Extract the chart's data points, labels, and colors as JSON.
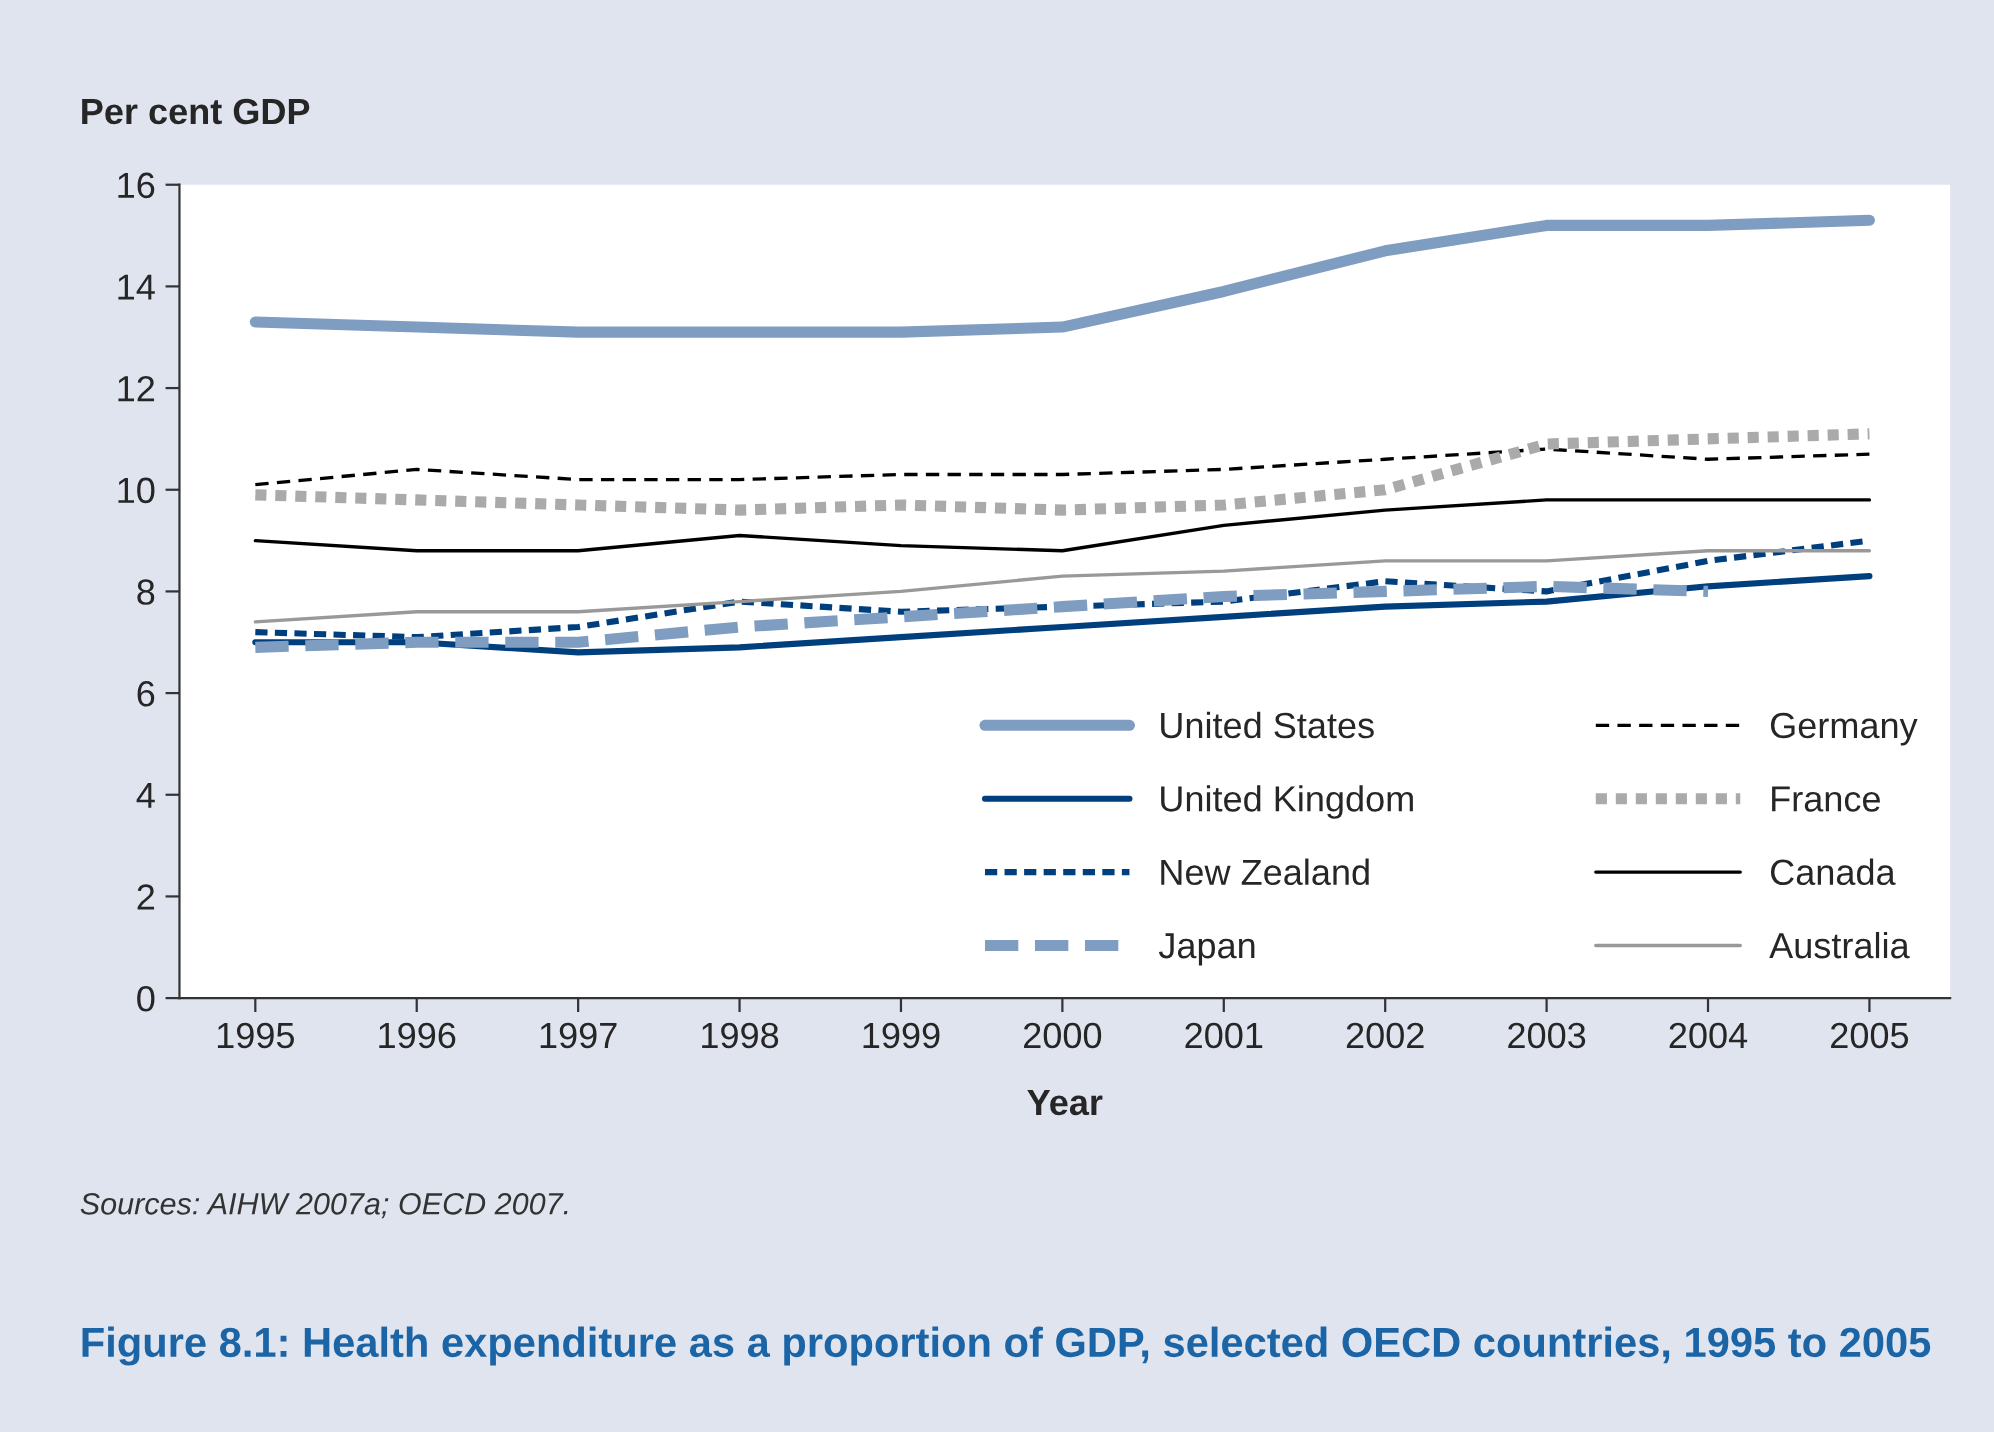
{
  "chart_data": {
    "type": "line",
    "title": "Figure 8.1: Health expenditure as a proportion of GDP, selected OECD countries, 1995 to 2005",
    "xlabel": "Year",
    "ylabel": "Per cent GDP",
    "annotations": [
      "Sources: AIHW 2007a; OECD 2007."
    ],
    "categories": [
      "1995",
      "1996",
      "1997",
      "1998",
      "1999",
      "2000",
      "2001",
      "2002",
      "2003",
      "2004",
      "2005"
    ],
    "ylim": [
      0,
      16
    ],
    "yticks": [
      0,
      2,
      4,
      6,
      8,
      10,
      12,
      14,
      16
    ],
    "grid": false,
    "legend": "bottom right",
    "series": [
      {
        "name": "United States",
        "color": "#7f9cc1",
        "line_style": "solid",
        "values": [
          13.3,
          13.2,
          13.1,
          13.1,
          13.1,
          13.2,
          13.9,
          14.7,
          15.2,
          15.2,
          15.3
        ]
      },
      {
        "name": "United Kingdom",
        "color": "#003f7d",
        "line_style": "solid",
        "values": [
          7.0,
          7.0,
          6.8,
          6.9,
          7.1,
          7.3,
          7.5,
          7.7,
          7.8,
          8.1,
          8.3
        ]
      },
      {
        "name": "New Zealand",
        "color": "#003f7d",
        "line_style": "dashed",
        "values": [
          7.2,
          7.1,
          7.3,
          7.8,
          7.6,
          7.7,
          7.8,
          8.2,
          8.0,
          8.6,
          9.0
        ]
      },
      {
        "name": "Japan",
        "color": "#7f9cc1",
        "line_style": "dashed",
        "values": [
          6.9,
          7.0,
          7.0,
          7.3,
          7.5,
          7.7,
          7.9,
          8.0,
          8.1,
          8.0,
          null
        ]
      },
      {
        "name": "Germany",
        "color": "#000000",
        "line_style": "dashed",
        "values": [
          10.1,
          10.4,
          10.2,
          10.2,
          10.3,
          10.3,
          10.4,
          10.6,
          10.8,
          10.6,
          10.7
        ]
      },
      {
        "name": "France",
        "color": "#aaaaaa",
        "line_style": "dotted",
        "values": [
          9.9,
          9.8,
          9.7,
          9.6,
          9.7,
          9.6,
          9.7,
          10.0,
          10.9,
          11.0,
          11.1
        ]
      },
      {
        "name": "Canada",
        "color": "#000000",
        "line_style": "solid",
        "values": [
          9.0,
          8.8,
          8.8,
          9.1,
          8.9,
          8.8,
          9.3,
          9.6,
          9.8,
          9.8,
          9.8
        ]
      },
      {
        "name": "Australia",
        "color": "#999999",
        "line_style": "solid",
        "values": [
          7.4,
          7.6,
          7.6,
          7.8,
          8.0,
          8.3,
          8.4,
          8.6,
          8.6,
          8.8,
          8.8
        ]
      }
    ]
  }
}
